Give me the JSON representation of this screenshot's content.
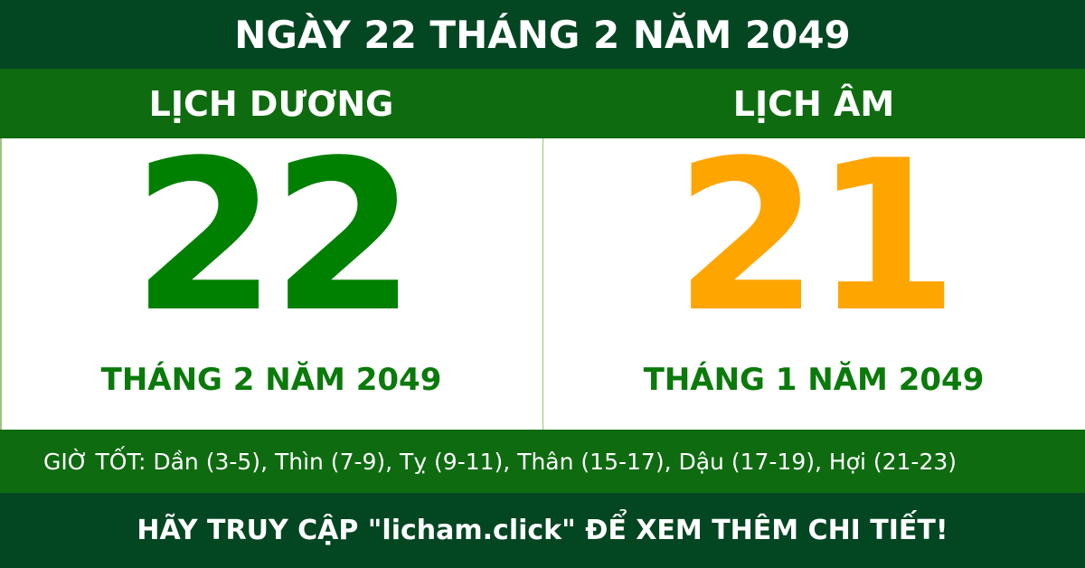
{
  "title": "NGÀY 22 THÁNG 2 NĂM 2049",
  "solar": {
    "label": "LỊCH DƯƠNG",
    "day": "22",
    "month_year": "THÁNG 2 NĂM 2049"
  },
  "lunar": {
    "label": "LỊCH ÂM",
    "day": "21",
    "month_year": "THÁNG 1 NĂM 2049"
  },
  "good_hours": "GIỜ TỐT: Dần (3-5), Thìn (7-9), Tỵ (9-11), Thân (15-17), Dậu (17-19), Hợi (21-23)",
  "footer": "HÃY TRUY CẬP \"licham.click\" ĐỂ XEM THÊM CHI TIẾT!",
  "colors": {
    "dark_green": "#034622",
    "green": "#0f6b10",
    "solar_number": "#008000",
    "lunar_number": "#ffa500"
  }
}
